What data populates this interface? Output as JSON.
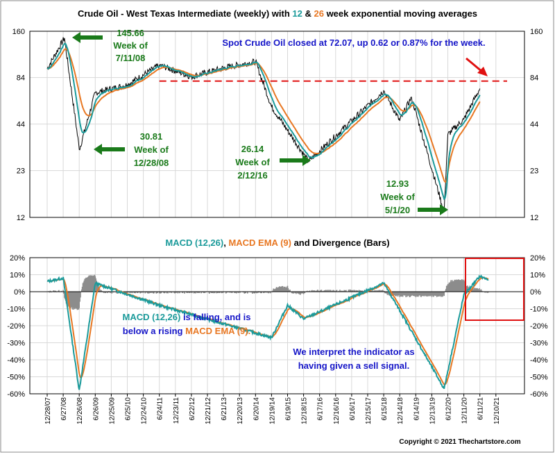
{
  "title": {
    "part1": "Crude Oil - West Texas Intermediate (weekly) with ",
    "n12": "12",
    "amp": " & ",
    "n26": "26",
    "part2": " week exponential moving averages"
  },
  "colors": {
    "teal": "#1a9a9a",
    "orange": "#e87722",
    "green": "#1a7a1a",
    "blue": "#1515c8",
    "red": "#e01010",
    "gray": "#8c8c8c"
  },
  "spot_note": "Spot Crude Oil closed at 72.07, up 0.62 or 0.87% for the week.",
  "annotations": {
    "a1": {
      "value": "145.66",
      "line2": "Week of",
      "line3": "7/11/08"
    },
    "a2": {
      "value": "30.81",
      "line2": "Week of",
      "line3": "12/28/08"
    },
    "a3": {
      "value": "26.14",
      "line2": "Week of",
      "line3": "2/12/16"
    },
    "a4": {
      "value": "12.93",
      "line2": "Week of",
      "line3": "5/1/20"
    }
  },
  "macd_title": {
    "part1": "MACD (12,26)",
    "sep": ", ",
    "part2": "MACD EMA (9)",
    "part3": " and Divergence (Bars)"
  },
  "macd_note": {
    "l1a": "MACD (12,26)",
    "l1b": " is falling, and is",
    "l2a": "below a rising ",
    "l2b": "MACD EMA (9)."
  },
  "sell_note": {
    "l1": "We interpret the indicator as",
    "l2": "having given a sell signal."
  },
  "copyright": "Copyright © 2021 Thechartstore.com",
  "chart_data": [
    {
      "type": "line",
      "title": "Crude Oil - West Texas Intermediate (weekly) with 12 & 26 week exponential moving averages",
      "y_scale": "log",
      "ylim": [
        12,
        160
      ],
      "y_ticks": [
        "160",
        "84",
        "44",
        "23",
        "12"
      ],
      "reference_line": {
        "value": 80,
        "style": "red dashed",
        "from": "6/24/11"
      },
      "series": [
        {
          "name": "Price",
          "color": "#000000"
        },
        {
          "name": "12",
          "color": "#1a9a9a"
        },
        {
          "name": "26",
          "color": "#e87722"
        }
      ],
      "keypoints": [
        {
          "date": "12/28/07",
          "value": 95
        },
        {
          "date": "7/11/08",
          "value": 145.66
        },
        {
          "date": "12/28/08",
          "value": 30.81
        },
        {
          "date": "6/26/09",
          "value": 68
        },
        {
          "date": "6/25/10",
          "value": 76
        },
        {
          "date": "6/24/11",
          "value": 100
        },
        {
          "date": "6/22/12",
          "value": 85
        },
        {
          "date": "6/21/13",
          "value": 96
        },
        {
          "date": "6/20/14",
          "value": 105
        },
        {
          "date": "12/19/14",
          "value": 56
        },
        {
          "date": "2/12/16",
          "value": 26.14
        },
        {
          "date": "6/16/17",
          "value": 46
        },
        {
          "date": "6/15/18",
          "value": 70
        },
        {
          "date": "12/14/18",
          "value": 46
        },
        {
          "date": "4/26/19",
          "value": 64
        },
        {
          "date": "5/1/20",
          "value": 12.93
        },
        {
          "date": "6/12/20",
          "value": 38
        },
        {
          "date": "12/11/20",
          "value": 47
        },
        {
          "date": "6/11/21",
          "value": 72.07
        }
      ]
    },
    {
      "type": "line",
      "title": "MACD (12,26), MACD EMA (9) and Divergence (Bars)",
      "ylim": [
        -60,
        20
      ],
      "y_ticks": [
        "20%",
        "10%",
        "0%",
        "-10%",
        "-20%",
        "-30%",
        "-40%",
        "-50%",
        "-60%"
      ],
      "series": [
        {
          "name": "MACD (12,26)",
          "color": "#1a9a9a"
        },
        {
          "name": "MACD EMA (9)",
          "color": "#e87722"
        },
        {
          "name": "Divergence (Bars)",
          "color": "#8c8c8c"
        }
      ],
      "keypoints_macd": [
        {
          "date": "12/28/07",
          "value": 6
        },
        {
          "date": "6/27/08",
          "value": 8
        },
        {
          "date": "12/26/08",
          "value": -58
        },
        {
          "date": "6/26/09",
          "value": 5
        },
        {
          "date": "6/24/11",
          "value": -8
        },
        {
          "date": "12/19/14",
          "value": -27
        },
        {
          "date": "6/19/15",
          "value": -8
        },
        {
          "date": "12/18/15",
          "value": -16
        },
        {
          "date": "6/15/18",
          "value": 5
        },
        {
          "date": "12/14/18",
          "value": -11
        },
        {
          "date": "5/1/20",
          "value": -57
        },
        {
          "date": "12/11/20",
          "value": -2
        },
        {
          "date": "6/11/21",
          "value": 9
        },
        {
          "date": "9/17/21",
          "value": 7
        }
      ]
    }
  ],
  "x_ticks": [
    "12/28/07",
    "6/27/08",
    "12/26/08",
    "6/26/09",
    "12/25/09",
    "6/25/10",
    "12/24/10",
    "6/24/11",
    "12/23/11",
    "6/22/12",
    "12/21/12",
    "6/21/13",
    "12/20/13",
    "6/20/14",
    "12/19/14",
    "6/19/15",
    "12/18/15",
    "6/17/16",
    "12/16/16",
    "6/16/17",
    "12/15/17",
    "6/15/18",
    "12/14/18",
    "6/14/19",
    "12/13/19",
    "6/12/20",
    "12/11/20",
    "6/11/21",
    "12/10/21"
  ]
}
